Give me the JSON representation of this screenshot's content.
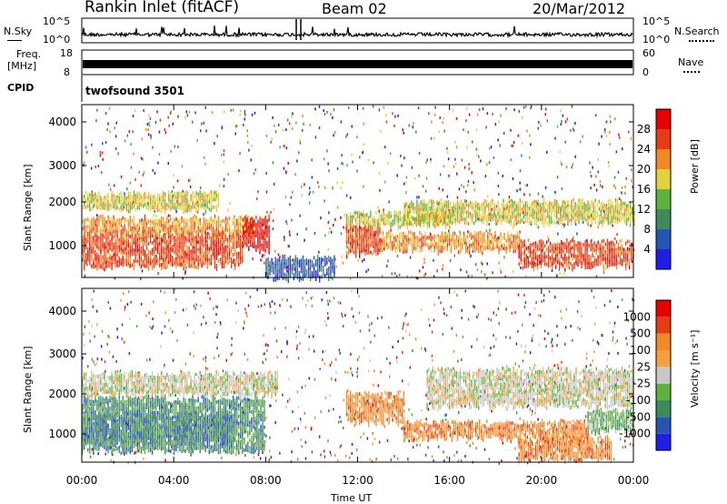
{
  "header": {
    "station": "Rankin Inlet (fitACF)",
    "beam": "Beam 02",
    "date": "20/Mar/2012"
  },
  "noise_panel": {
    "left_label": "N.Sky",
    "right_label": "N.Search",
    "tick_top": "10^5",
    "tick_bottom": "10^0"
  },
  "freq_panel": {
    "left_label_top": "Freq.",
    "left_label_unit": "[MHz]",
    "right_label": "Nave",
    "left_ticks": [
      "18",
      "8"
    ],
    "right_ticks": [
      "60",
      "0"
    ]
  },
  "cpid_panel": {
    "label": "CPID",
    "value": "twofsound 3501"
  },
  "x_axis": {
    "label": "Time UT",
    "ticks": [
      "00:00",
      "04:00",
      "08:00",
      "12:00",
      "16:00",
      "20:00",
      "00:00"
    ]
  },
  "chart_data": [
    {
      "type": "heatmap",
      "name": "power",
      "ylabel": "Slant Range [km]",
      "yticks": [
        "1000",
        "2000",
        "3000",
        "4000"
      ],
      "ylim": [
        200,
        4500
      ],
      "xlim_hours": [
        0,
        24
      ],
      "colorbar": {
        "label": "Power [dB]",
        "ticks": [
          "4",
          "8",
          "12",
          "16",
          "20",
          "24",
          "28"
        ],
        "colors": [
          "#1e1ee6",
          "#2454b4",
          "#3f8a5a",
          "#5fb23c",
          "#e2d23a",
          "#f08a22",
          "#e53c14",
          "#e60000"
        ]
      },
      "patches": [
        {
          "t0": 0.0,
          "t1": 7.0,
          "r0": 500,
          "r1": 1300,
          "level": 6
        },
        {
          "t0": 0.0,
          "t1": 7.5,
          "r0": 1300,
          "r1": 1700,
          "level": 5
        },
        {
          "t0": 7.0,
          "t1": 8.2,
          "r0": 900,
          "r1": 1700,
          "level": 7
        },
        {
          "t0": 0.0,
          "t1": 6.0,
          "r0": 1900,
          "r1": 2300,
          "level": 4
        },
        {
          "t0": 11.5,
          "t1": 13.0,
          "r0": 800,
          "r1": 1500,
          "level": 6
        },
        {
          "t0": 11.5,
          "t1": 16.0,
          "r0": 1500,
          "r1": 1800,
          "level": 4
        },
        {
          "t0": 13.0,
          "t1": 19.0,
          "r0": 900,
          "r1": 1300,
          "level": 5
        },
        {
          "t0": 14.0,
          "t1": 24.0,
          "r0": 1600,
          "r1": 2100,
          "level": 4
        },
        {
          "t0": 19.0,
          "t1": 24.0,
          "r0": 500,
          "r1": 1100,
          "level": 6
        },
        {
          "t0": 8.0,
          "t1": 11.0,
          "r0": 200,
          "r1": 700,
          "level": 1
        }
      ]
    },
    {
      "type": "heatmap",
      "name": "velocity",
      "ylabel": "Slant Range [km]",
      "yticks": [
        "1000",
        "2000",
        "3000",
        "4000"
      ],
      "ylim": [
        200,
        4500
      ],
      "xlim_hours": [
        0,
        24
      ],
      "colorbar": {
        "label": "Velocity [m s⁻¹]",
        "ticks": [
          "1000",
          "500",
          "100",
          "25",
          "-25",
          "-100",
          "-500",
          "-1000"
        ],
        "colors": [
          "#1e1ee6",
          "#2454b4",
          "#3f8a5a",
          "#5fb23c",
          "#c8c8c8",
          "#f4a040",
          "#f08a22",
          "#e53c14",
          "#e60000"
        ]
      },
      "patches": [
        {
          "t0": 0.0,
          "t1": 6.5,
          "r0": 700,
          "r1": 1400,
          "level": 1
        },
        {
          "t0": 0.0,
          "t1": 8.0,
          "r0": 500,
          "r1": 1800,
          "level": 2
        },
        {
          "t0": 0.0,
          "t1": 8.5,
          "r0": 1900,
          "r1": 2400,
          "level": 4
        },
        {
          "t0": 11.5,
          "t1": 14.0,
          "r0": 1200,
          "r1": 1900,
          "level": 6
        },
        {
          "t0": 14.0,
          "t1": 22.0,
          "r0": 800,
          "r1": 1200,
          "level": 6
        },
        {
          "t0": 15.0,
          "t1": 24.0,
          "r0": 1600,
          "r1": 2500,
          "level": 4
        },
        {
          "t0": 19.0,
          "t1": 23.0,
          "r0": 300,
          "r1": 800,
          "level": 6
        },
        {
          "t0": 22.0,
          "t1": 24.0,
          "r0": 1000,
          "r1": 1500,
          "level": 3
        }
      ]
    }
  ]
}
